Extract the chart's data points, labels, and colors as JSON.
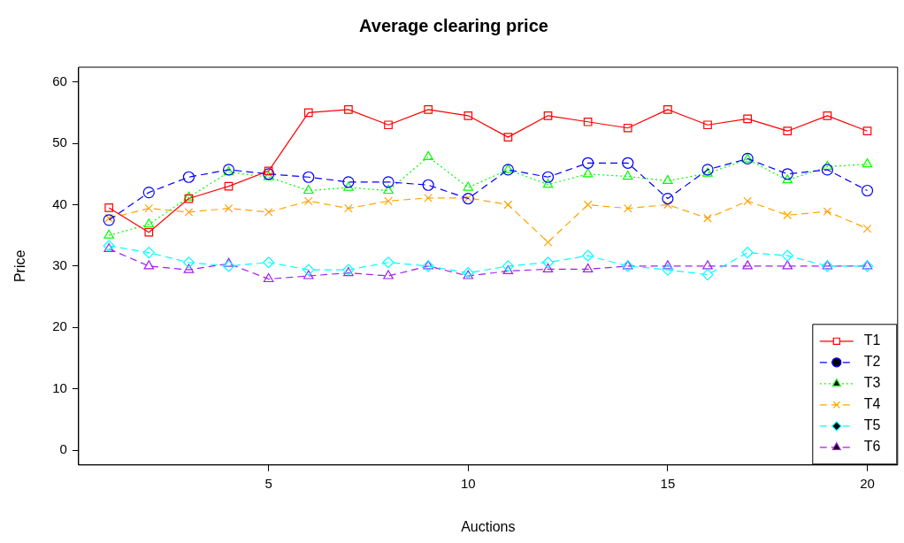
{
  "chart_data": {
    "type": "line",
    "title": "Average clearing price",
    "xlabel": "Auctions",
    "ylabel": "Price",
    "x": [
      1,
      2,
      3,
      4,
      5,
      6,
      7,
      8,
      9,
      10,
      11,
      12,
      13,
      14,
      15,
      16,
      17,
      18,
      19,
      20
    ],
    "xlim": [
      0.24,
      20.76
    ],
    "xticks": [
      5,
      10,
      15,
      20
    ],
    "ylim": [
      -2.4,
      62.4
    ],
    "yticks": [
      0,
      10,
      20,
      30,
      40,
      50,
      60
    ],
    "grid": false,
    "legend": "bottom right",
    "series": [
      {
        "name": "T1",
        "color": "#ff0000",
        "marker": "square",
        "line_style": "solid",
        "values": [
          39.5,
          35.5,
          41,
          43,
          45.5,
          55,
          55.5,
          53,
          55.5,
          54.5,
          51,
          54.5,
          53.5,
          52.5,
          55.5,
          53,
          54,
          52,
          54.5,
          52
        ]
      },
      {
        "name": "T2",
        "color": "#0000ff",
        "marker": "circle",
        "line_style": "dashed",
        "values": [
          37.5,
          42,
          44.5,
          45.7,
          45,
          44.5,
          43.7,
          43.7,
          43.2,
          41,
          45.7,
          44.5,
          46.8,
          46.8,
          41,
          45.7,
          47.5,
          45,
          45.7,
          42.3
        ]
      },
      {
        "name": "T3",
        "color": "#00ff00",
        "marker": "triangle",
        "line_style": "dotted",
        "values": [
          35,
          36.8,
          41.2,
          45.3,
          44.5,
          42.3,
          42.8,
          42.3,
          47.8,
          42.8,
          45.7,
          43.3,
          45,
          44.6,
          43.9,
          45.1,
          47.4,
          44,
          46.2,
          46.6
        ]
      },
      {
        "name": "T4",
        "color": "#ffa500",
        "marker": "cross",
        "line_style": "dashed",
        "values": [
          37.8,
          39.4,
          38.8,
          39.4,
          38.8,
          40.6,
          39.4,
          40.6,
          41.1,
          41.1,
          40,
          33.9,
          40,
          39.4,
          40,
          37.8,
          40.6,
          38.3,
          38.9,
          36.1
        ]
      },
      {
        "name": "T5",
        "color": "#00ffff",
        "marker": "diamond",
        "line_style": "dashed",
        "values": [
          33.3,
          32.2,
          30.6,
          30,
          30.6,
          29.4,
          29.4,
          30.6,
          30,
          28.9,
          30,
          30.6,
          31.7,
          30,
          29.4,
          28.6,
          32.2,
          31.7,
          30,
          30
        ]
      },
      {
        "name": "T6",
        "color": "#a020f0",
        "marker": "triangle",
        "line_style": "dashed",
        "values": [
          32.8,
          30,
          29.4,
          30.4,
          27.9,
          28.4,
          28.9,
          28.4,
          30,
          28.4,
          29.2,
          29.5,
          29.5,
          30,
          30,
          30,
          30,
          30,
          30,
          30
        ]
      }
    ]
  }
}
